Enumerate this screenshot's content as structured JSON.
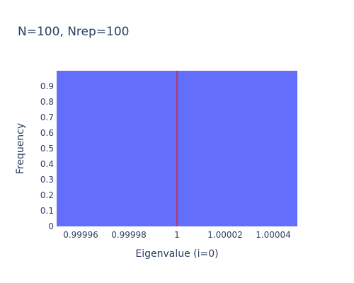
{
  "chart_data": {
    "type": "bar",
    "title": "N=100, Nrep=100",
    "xlabel": "Eigenvalue (i=0)",
    "ylabel": "Frequency",
    "xlim": [
      0.99995,
      1.00005
    ],
    "ylim": [
      0,
      1
    ],
    "x_ticks": [
      0.99996,
      0.99998,
      1,
      1.00002,
      1.00004
    ],
    "x_tick_labels": [
      "0.99996",
      "0.99998",
      "1",
      "1.00002",
      "1.00004"
    ],
    "y_ticks": [
      0,
      0.1,
      0.2,
      0.3,
      0.4,
      0.5,
      0.6,
      0.7,
      0.8,
      0.9
    ],
    "y_tick_labels": [
      "0",
      "0.1",
      "0.2",
      "0.3",
      "0.4",
      "0.5",
      "0.6",
      "0.7",
      "0.8",
      "0.9"
    ],
    "bars": [
      {
        "x0": 0.99995,
        "x1": 1.00005,
        "value": 1
      }
    ],
    "reference_line": {
      "x": 1
    },
    "colors": {
      "bar": "#636efa",
      "reference_line": "#d62728",
      "text": "#2a3f5f"
    },
    "grid": false,
    "legend": "none"
  }
}
